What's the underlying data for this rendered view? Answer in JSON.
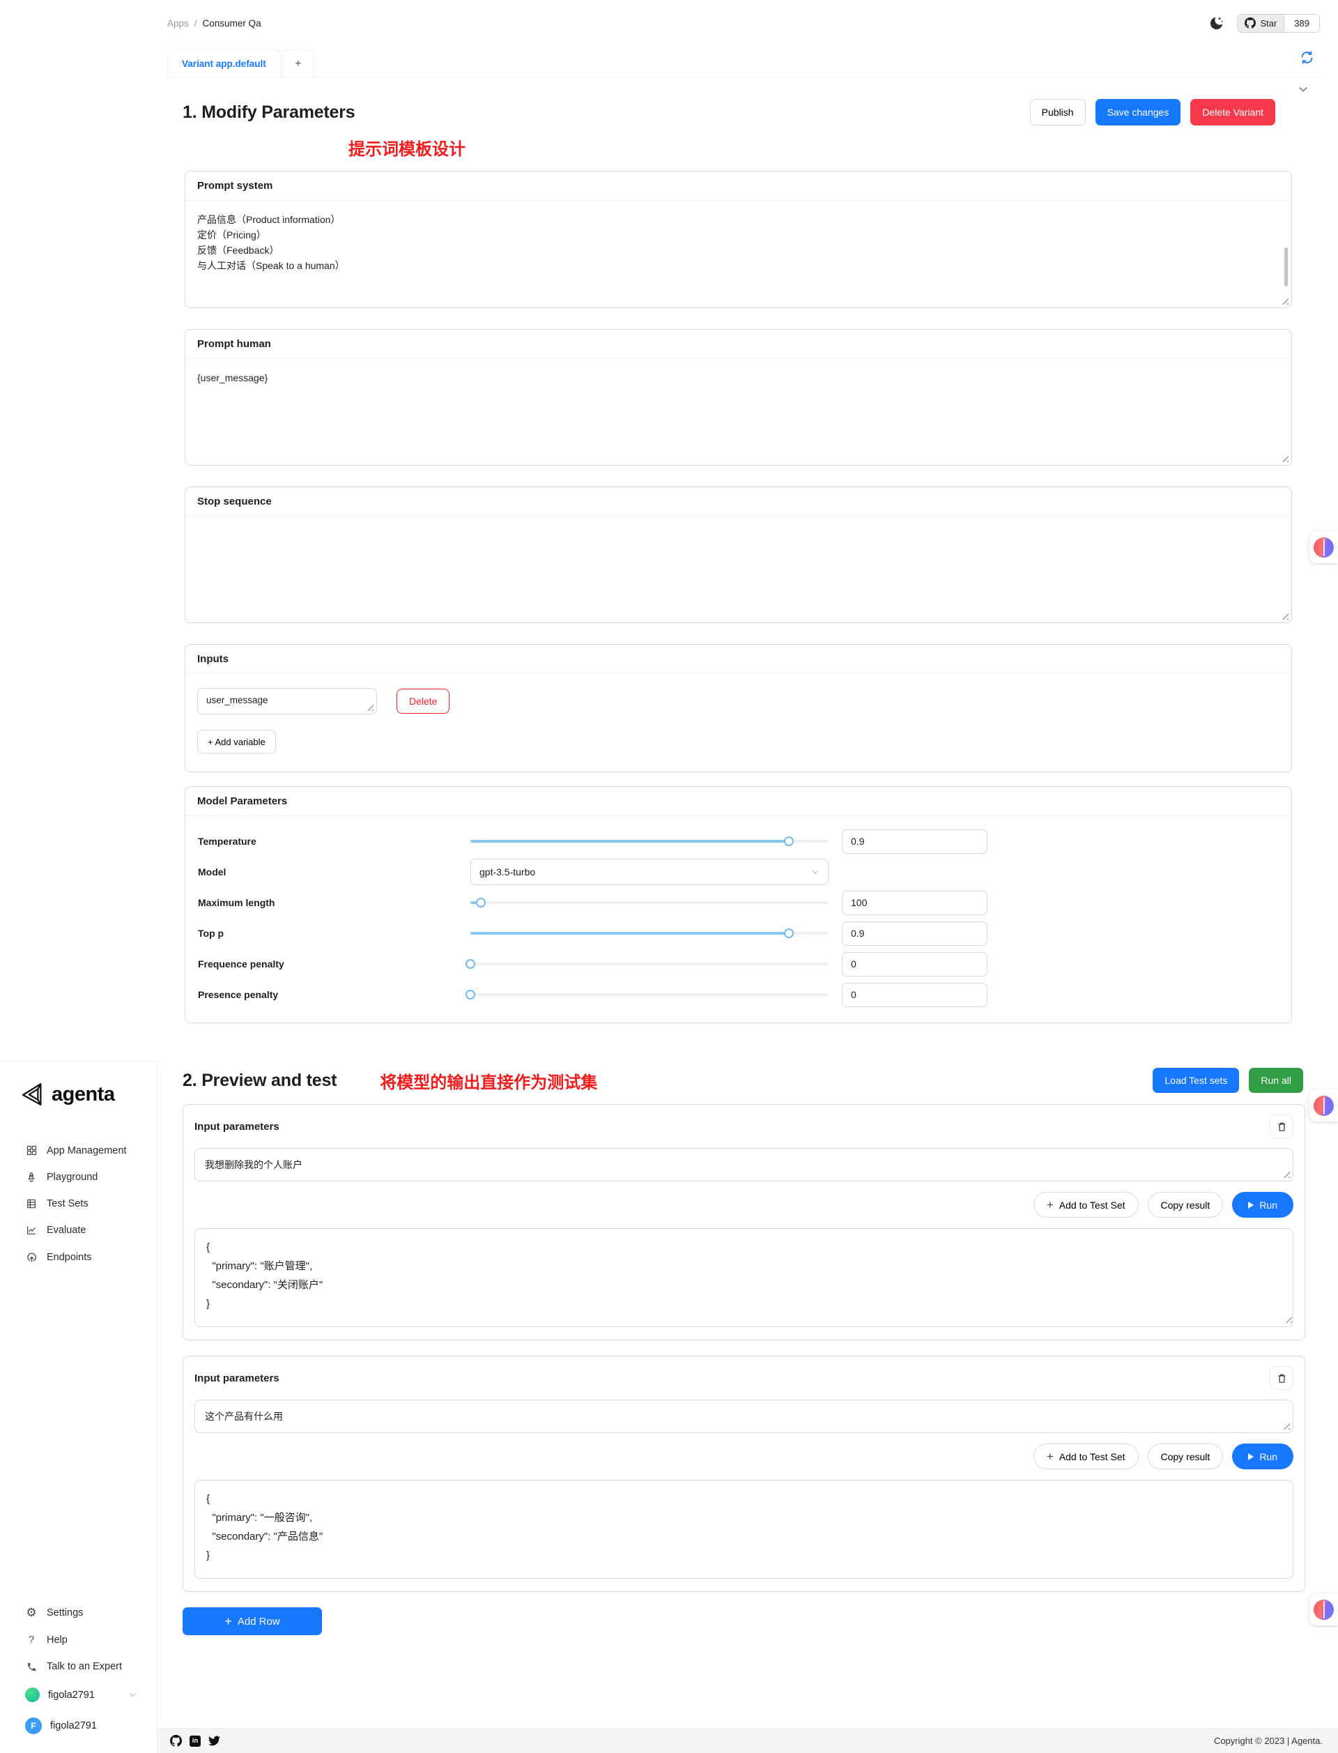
{
  "header": {
    "breadcrumb_app": "Apps",
    "breadcrumb_sep": "/",
    "breadcrumb_page": "Consumer Qa",
    "star_label": "Star",
    "star_count": "389"
  },
  "tabbar": {
    "variant_tab": "Variant app.default",
    "new_tab": "+"
  },
  "section1": {
    "title": "1. Modify Parameters",
    "publish_label": "Publish",
    "save_label": "Save changes",
    "delete_label": "Delete Variant",
    "annotation": "提示词模板设计"
  },
  "prompt_system": {
    "title": "Prompt system",
    "content": "产品信息（Product information）\n定价（Pricing）\n反馈（Feedback）\n与人工对话（Speak to a human）"
  },
  "prompt_human": {
    "title": "Prompt human",
    "content": "{user_message}"
  },
  "stop_sequence": {
    "title": "Stop sequence",
    "content": ""
  },
  "inputs_panel": {
    "title": "Inputs",
    "variable_value": "user_message",
    "delete_label": "Delete",
    "add_variable_label": "+ Add variable"
  },
  "model_parameters": {
    "title": "Model Parameters",
    "rows": [
      {
        "label": "Temperature",
        "value": "0.9",
        "percent": 89
      },
      {
        "label": "Model",
        "value": "gpt-3.5-turbo"
      },
      {
        "label": "Maximum length",
        "value": "100",
        "percent": 3
      },
      {
        "label": "Top p",
        "value": "0.9",
        "percent": 89
      },
      {
        "label": "Frequence penalty",
        "value": "0",
        "percent": 0
      },
      {
        "label": "Presence penalty",
        "value": "0",
        "percent": 0
      }
    ]
  },
  "section2": {
    "title": "2. Preview and test",
    "annotation": "将模型的输出直接作为测试集",
    "load_test_sets_label": "Load Test sets",
    "run_all_label": "Run all",
    "add_to_test_set_label": "Add to Test Set",
    "copy_result_label": "Copy result",
    "run_label": "Run",
    "add_row_label": "Add Row",
    "plus_glyph": "+"
  },
  "test_rows": [
    {
      "header": "Input parameters",
      "input_value": "我想删除我的个人账户",
      "output": "{\n  \"primary\": \"账户管理\",\n  \"secondary\": \"关闭账户\"\n}"
    },
    {
      "header": "Input parameters",
      "input_value": "这个产品有什么用",
      "output": "{\n  \"primary\": \"一般咨询\",\n  \"secondary\": \"产品信息\"\n}"
    }
  ],
  "sidebar": {
    "logo_text": "agenta",
    "items": [
      {
        "label": "App Management"
      },
      {
        "label": "Playground"
      },
      {
        "label": "Test Sets"
      },
      {
        "label": "Evaluate"
      },
      {
        "label": "Endpoints"
      }
    ],
    "bottom_items": [
      {
        "label": "Settings"
      },
      {
        "label": "Help"
      },
      {
        "label": "Talk to an Expert"
      }
    ],
    "username": "figola2791",
    "username_footer": "figola2791",
    "avatar_letter": "F"
  },
  "footer": {
    "copyright": "Copyright © 2023 | Agenta."
  },
  "colors": {
    "primary_blue": "#1677ff",
    "danger_red": "#f5394b",
    "annotation_red": "#f11c1c",
    "run_green": "#2f9e44",
    "slider_fill": "#86c6f4"
  }
}
